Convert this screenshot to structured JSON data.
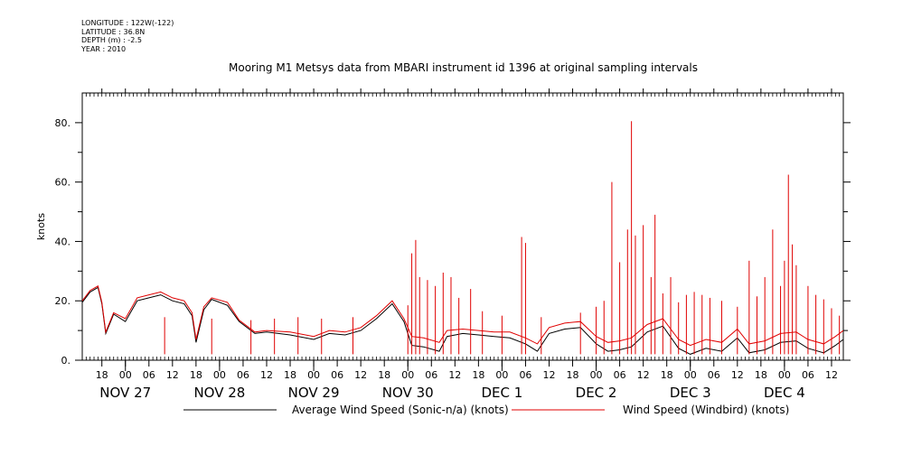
{
  "metadata": {
    "longitude": "LONGITUDE : 122W(-122)",
    "latitude": "LATITUDE : 36.8N",
    "depth": "DEPTH (m) : -2.5",
    "year": "YEAR : 2010"
  },
  "colors": {
    "sonic": "#000000",
    "windbird": "#e00000"
  },
  "chart_data": {
    "type": "line",
    "title": "Mooring M1 Metsys data from MBARI instrument id 1396 at original sampling intervals",
    "ylabel": "knots",
    "xlabel": "",
    "ylim": [
      0,
      90
    ],
    "y_ticks": [
      0,
      20,
      40,
      60,
      80
    ],
    "y_tick_labels": [
      "0.",
      "20.",
      "40.",
      "60.",
      "80."
    ],
    "x_start": "2010-11-26T13:00",
    "x_end": "2010-12-04T15:00",
    "hour_ticks": [
      {
        "t": "2010-11-26T18:00",
        "label": "18"
      },
      {
        "t": "2010-11-27T00:00",
        "label": "00"
      },
      {
        "t": "2010-11-27T06:00",
        "label": "06"
      },
      {
        "t": "2010-11-27T12:00",
        "label": "12"
      },
      {
        "t": "2010-11-27T18:00",
        "label": "18"
      },
      {
        "t": "2010-11-28T00:00",
        "label": "00"
      },
      {
        "t": "2010-11-28T06:00",
        "label": "06"
      },
      {
        "t": "2010-11-28T12:00",
        "label": "12"
      },
      {
        "t": "2010-11-28T18:00",
        "label": "18"
      },
      {
        "t": "2010-11-29T00:00",
        "label": "00"
      },
      {
        "t": "2010-11-29T06:00",
        "label": "06"
      },
      {
        "t": "2010-11-29T12:00",
        "label": "12"
      },
      {
        "t": "2010-11-29T18:00",
        "label": "18"
      },
      {
        "t": "2010-11-30T00:00",
        "label": "00"
      },
      {
        "t": "2010-11-30T06:00",
        "label": "06"
      },
      {
        "t": "2010-11-30T12:00",
        "label": "12"
      },
      {
        "t": "2010-11-30T18:00",
        "label": "18"
      },
      {
        "t": "2010-12-01T00:00",
        "label": "00"
      },
      {
        "t": "2010-12-01T06:00",
        "label": "06"
      },
      {
        "t": "2010-12-01T12:00",
        "label": "12"
      },
      {
        "t": "2010-12-01T18:00",
        "label": "18"
      },
      {
        "t": "2010-12-02T00:00",
        "label": "00"
      },
      {
        "t": "2010-12-02T06:00",
        "label": "06"
      },
      {
        "t": "2010-12-02T12:00",
        "label": "12"
      },
      {
        "t": "2010-12-02T18:00",
        "label": "18"
      },
      {
        "t": "2010-12-03T00:00",
        "label": "00"
      },
      {
        "t": "2010-12-03T06:00",
        "label": "06"
      },
      {
        "t": "2010-12-03T12:00",
        "label": "12"
      },
      {
        "t": "2010-12-03T18:00",
        "label": "18"
      },
      {
        "t": "2010-12-04T00:00",
        "label": "00"
      },
      {
        "t": "2010-12-04T06:00",
        "label": "06"
      },
      {
        "t": "2010-12-04T12:00",
        "label": "12"
      }
    ],
    "date_labels": [
      {
        "t": "2010-11-27T00:00",
        "label": "NOV 27"
      },
      {
        "t": "2010-11-28T00:00",
        "label": "NOV 28"
      },
      {
        "t": "2010-11-29T00:00",
        "label": "NOV 29"
      },
      {
        "t": "2010-11-30T00:00",
        "label": "NOV 30"
      },
      {
        "t": "2010-12-01T00:00",
        "label": "DEC  1"
      },
      {
        "t": "2010-12-02T00:00",
        "label": "DEC  2"
      },
      {
        "t": "2010-12-03T00:00",
        "label": "DEC  3"
      },
      {
        "t": "2010-12-04T00:00",
        "label": "DEC  4"
      }
    ],
    "series": [
      {
        "name": "Average Wind Speed (Sonic-n/a) (knots)",
        "color": "#000000",
        "points": [
          [
            "2010-11-26T13:00",
            19.5
          ],
          [
            "2010-11-26T15:00",
            23.0
          ],
          [
            "2010-11-26T17:00",
            24.5
          ],
          [
            "2010-11-26T18:00",
            19.0
          ],
          [
            "2010-11-26T19:00",
            9.0
          ],
          [
            "2010-11-26T21:00",
            15.5
          ],
          [
            "2010-11-27T00:00",
            13.0
          ],
          [
            "2010-11-27T03:00",
            20.0
          ],
          [
            "2010-11-27T06:00",
            21.0
          ],
          [
            "2010-11-27T09:00",
            22.0
          ],
          [
            "2010-11-27T12:00",
            20.0
          ],
          [
            "2010-11-27T15:00",
            19.0
          ],
          [
            "2010-11-27T17:00",
            15.0
          ],
          [
            "2010-11-27T18:00",
            6.0
          ],
          [
            "2010-11-27T20:00",
            17.0
          ],
          [
            "2010-11-27T22:00",
            20.5
          ],
          [
            "2010-11-28T02:00",
            18.5
          ],
          [
            "2010-11-28T05:00",
            13.0
          ],
          [
            "2010-11-28T09:00",
            9.0
          ],
          [
            "2010-11-28T12:00",
            9.5
          ],
          [
            "2010-11-28T18:00",
            8.5
          ],
          [
            "2010-11-29T00:00",
            7.0
          ],
          [
            "2010-11-29T04:00",
            9.0
          ],
          [
            "2010-11-29T08:00",
            8.5
          ],
          [
            "2010-11-29T12:00",
            10.0
          ],
          [
            "2010-11-29T16:00",
            14.0
          ],
          [
            "2010-11-29T20:00",
            19.0
          ],
          [
            "2010-11-29T23:00",
            13.0
          ],
          [
            "2010-11-30T01:00",
            5.0
          ],
          [
            "2010-11-30T04:00",
            4.5
          ],
          [
            "2010-11-30T08:00",
            3.0
          ],
          [
            "2010-11-30T10:00",
            8.0
          ],
          [
            "2010-11-30T14:00",
            9.0
          ],
          [
            "2010-11-30T18:00",
            8.5
          ],
          [
            "2010-11-30T22:00",
            8.0
          ],
          [
            "2010-12-01T02:00",
            7.5
          ],
          [
            "2010-12-01T06:00",
            5.5
          ],
          [
            "2010-12-01T09:00",
            3.0
          ],
          [
            "2010-12-01T12:00",
            9.0
          ],
          [
            "2010-12-01T16:00",
            10.5
          ],
          [
            "2010-12-01T20:00",
            11.0
          ],
          [
            "2010-12-02T00:00",
            5.5
          ],
          [
            "2010-12-02T03:00",
            3.0
          ],
          [
            "2010-12-02T06:00",
            3.5
          ],
          [
            "2010-12-02T09:00",
            4.5
          ],
          [
            "2010-12-02T13:00",
            9.5
          ],
          [
            "2010-12-02T17:00",
            11.5
          ],
          [
            "2010-12-02T21:00",
            4.0
          ],
          [
            "2010-12-03T00:00",
            2.0
          ],
          [
            "2010-12-03T04:00",
            4.0
          ],
          [
            "2010-12-03T08:00",
            3.0
          ],
          [
            "2010-12-03T12:00",
            7.5
          ],
          [
            "2010-12-03T15:00",
            2.5
          ],
          [
            "2010-12-03T19:00",
            3.5
          ],
          [
            "2010-12-03T23:00",
            6.0
          ],
          [
            "2010-12-04T03:00",
            6.5
          ],
          [
            "2010-12-04T06:00",
            4.0
          ],
          [
            "2010-12-04T10:00",
            2.5
          ],
          [
            "2010-12-04T13:00",
            5.0
          ],
          [
            "2010-12-04T15:00",
            7.0
          ]
        ]
      },
      {
        "name": "Wind Speed (Windbird) (knots)",
        "color": "#e00000",
        "points": [
          [
            "2010-11-26T13:00",
            20.0
          ],
          [
            "2010-11-26T15:00",
            23.5
          ],
          [
            "2010-11-26T17:00",
            25.0
          ],
          [
            "2010-11-26T18:00",
            19.5
          ],
          [
            "2010-11-26T19:00",
            9.5
          ],
          [
            "2010-11-26T21:00",
            16.0
          ],
          [
            "2010-11-27T00:00",
            14.0
          ],
          [
            "2010-11-27T03:00",
            21.0
          ],
          [
            "2010-11-27T06:00",
            22.0
          ],
          [
            "2010-11-27T09:00",
            23.0
          ],
          [
            "2010-11-27T12:00",
            21.0
          ],
          [
            "2010-11-27T15:00",
            20.0
          ],
          [
            "2010-11-27T17:00",
            16.0
          ],
          [
            "2010-11-27T18:00",
            7.0
          ],
          [
            "2010-11-27T20:00",
            18.0
          ],
          [
            "2010-11-27T22:00",
            21.0
          ],
          [
            "2010-11-28T02:00",
            19.5
          ],
          [
            "2010-11-28T05:00",
            13.5
          ],
          [
            "2010-11-28T09:00",
            9.5
          ],
          [
            "2010-11-28T12:00",
            10.0
          ],
          [
            "2010-11-28T18:00",
            9.5
          ],
          [
            "2010-11-29T00:00",
            8.0
          ],
          [
            "2010-11-29T04:00",
            10.0
          ],
          [
            "2010-11-29T08:00",
            9.5
          ],
          [
            "2010-11-29T12:00",
            11.0
          ],
          [
            "2010-11-29T16:00",
            15.0
          ],
          [
            "2010-11-29T20:00",
            20.0
          ],
          [
            "2010-11-29T23:00",
            14.0
          ],
          [
            "2010-11-30T01:00",
            8.0
          ],
          [
            "2010-11-30T04:00",
            7.5
          ],
          [
            "2010-11-30T08:00",
            6.0
          ],
          [
            "2010-11-30T10:00",
            10.0
          ],
          [
            "2010-11-30T14:00",
            10.5
          ],
          [
            "2010-11-30T18:00",
            10.0
          ],
          [
            "2010-11-30T22:00",
            9.5
          ],
          [
            "2010-12-01T02:00",
            9.5
          ],
          [
            "2010-12-01T06:00",
            7.5
          ],
          [
            "2010-12-01T09:00",
            5.5
          ],
          [
            "2010-12-01T12:00",
            11.0
          ],
          [
            "2010-12-01T16:00",
            12.5
          ],
          [
            "2010-12-01T20:00",
            13.0
          ],
          [
            "2010-12-02T00:00",
            8.0
          ],
          [
            "2010-12-02T03:00",
            6.0
          ],
          [
            "2010-12-02T06:00",
            6.5
          ],
          [
            "2010-12-02T09:00",
            7.5
          ],
          [
            "2010-12-02T13:00",
            12.0
          ],
          [
            "2010-12-02T17:00",
            14.0
          ],
          [
            "2010-12-02T21:00",
            7.0
          ],
          [
            "2010-12-03T00:00",
            5.0
          ],
          [
            "2010-12-03T04:00",
            7.0
          ],
          [
            "2010-12-03T08:00",
            6.0
          ],
          [
            "2010-12-03T12:00",
            10.5
          ],
          [
            "2010-12-03T15:00",
            5.5
          ],
          [
            "2010-12-03T19:00",
            6.5
          ],
          [
            "2010-12-03T23:00",
            9.0
          ],
          [
            "2010-12-04T03:00",
            9.5
          ],
          [
            "2010-12-04T06:00",
            7.0
          ],
          [
            "2010-12-04T10:00",
            5.5
          ],
          [
            "2010-12-04T13:00",
            8.0
          ],
          [
            "2010-12-04T15:00",
            10.0
          ]
        ],
        "spikes": [
          [
            "2010-11-27T10:00",
            14.5
          ],
          [
            "2010-11-27T22:00",
            14.0
          ],
          [
            "2010-11-28T08:00",
            13.5
          ],
          [
            "2010-11-28T14:00",
            14.0
          ],
          [
            "2010-11-28T20:00",
            14.5
          ],
          [
            "2010-11-29T02:00",
            14.0
          ],
          [
            "2010-11-29T10:00",
            14.5
          ],
          [
            "2010-11-30T00:00",
            18.5
          ],
          [
            "2010-11-30T01:00",
            36.0
          ],
          [
            "2010-11-30T02:00",
            40.5
          ],
          [
            "2010-11-30T03:00",
            28.0
          ],
          [
            "2010-11-30T05:00",
            27.0
          ],
          [
            "2010-11-30T07:00",
            25.0
          ],
          [
            "2010-11-30T09:00",
            29.5
          ],
          [
            "2010-11-30T11:00",
            28.0
          ],
          [
            "2010-11-30T13:00",
            21.0
          ],
          [
            "2010-11-30T16:00",
            24.0
          ],
          [
            "2010-11-30T19:00",
            16.5
          ],
          [
            "2010-12-01T00:00",
            15.0
          ],
          [
            "2010-12-01T05:00",
            41.5
          ],
          [
            "2010-12-01T06:00",
            39.5
          ],
          [
            "2010-12-01T10:00",
            14.5
          ],
          [
            "2010-12-01T20:00",
            16.0
          ],
          [
            "2010-12-02T00:00",
            18.0
          ],
          [
            "2010-12-02T02:00",
            20.0
          ],
          [
            "2010-12-02T04:00",
            60.0
          ],
          [
            "2010-12-02T06:00",
            33.0
          ],
          [
            "2010-12-02T08:00",
            44.0
          ],
          [
            "2010-12-02T09:00",
            80.5
          ],
          [
            "2010-12-02T10:00",
            42.0
          ],
          [
            "2010-12-02T12:00",
            45.5
          ],
          [
            "2010-12-02T14:00",
            28.0
          ],
          [
            "2010-12-02T15:00",
            49.0
          ],
          [
            "2010-12-02T17:00",
            22.5
          ],
          [
            "2010-12-02T19:00",
            28.0
          ],
          [
            "2010-12-02T21:00",
            19.5
          ],
          [
            "2010-12-02T23:00",
            22.0
          ],
          [
            "2010-12-03T01:00",
            23.0
          ],
          [
            "2010-12-03T03:00",
            22.0
          ],
          [
            "2010-12-03T05:00",
            21.0
          ],
          [
            "2010-12-03T08:00",
            20.0
          ],
          [
            "2010-12-03T12:00",
            18.0
          ],
          [
            "2010-12-03T15:00",
            33.5
          ],
          [
            "2010-12-03T17:00",
            21.5
          ],
          [
            "2010-12-03T19:00",
            28.0
          ],
          [
            "2010-12-03T21:00",
            44.0
          ],
          [
            "2010-12-03T23:00",
            25.0
          ],
          [
            "2010-12-04T00:00",
            33.5
          ],
          [
            "2010-12-04T01:00",
            62.5
          ],
          [
            "2010-12-04T02:00",
            39.0
          ],
          [
            "2010-12-04T03:00",
            32.0
          ],
          [
            "2010-12-04T06:00",
            25.0
          ],
          [
            "2010-12-04T08:00",
            22.0
          ],
          [
            "2010-12-04T10:00",
            20.5
          ],
          [
            "2010-12-04T12:00",
            17.5
          ],
          [
            "2010-12-04T14:00",
            15.0
          ]
        ]
      }
    ],
    "legend": [
      {
        "label": "Average Wind Speed (Sonic-n/a) (knots)",
        "color": "#000000"
      },
      {
        "label": "Wind Speed (Windbird) (knots)",
        "color": "#e00000"
      }
    ]
  }
}
